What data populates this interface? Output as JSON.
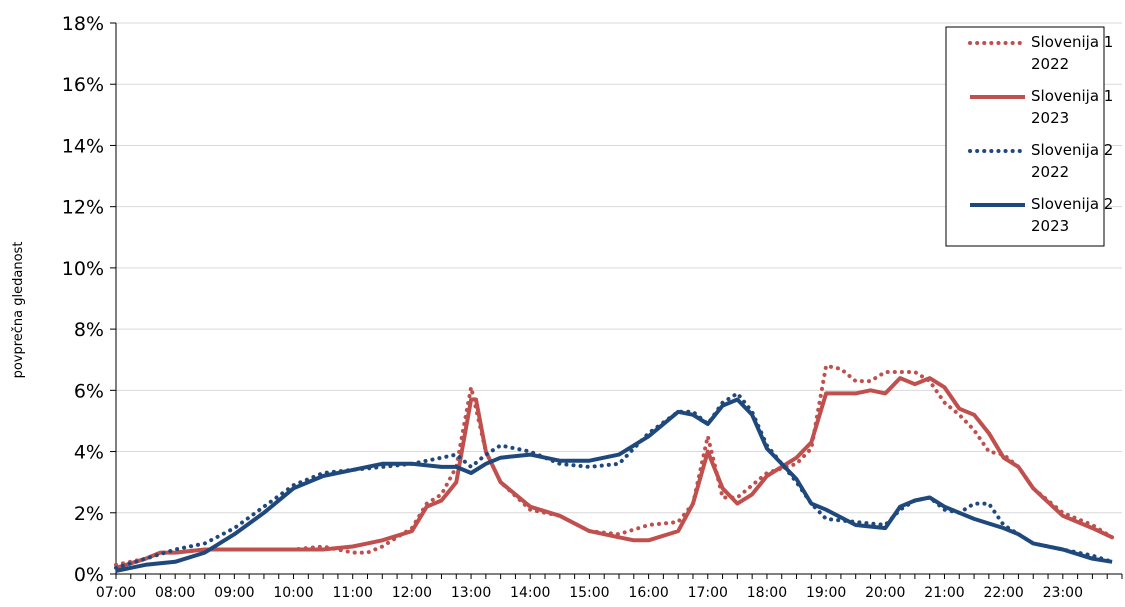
{
  "chart_data": {
    "type": "line",
    "title": "",
    "xlabel": "",
    "ylabel": "povprečna gledanost",
    "x_ticks": [
      "07:00",
      "08:00",
      "09:00",
      "10:00",
      "11:00",
      "12:00",
      "13:00",
      "14:00",
      "15:00",
      "16:00",
      "17:00",
      "18:00",
      "19:00",
      "20:00",
      "21:00",
      "22:00",
      "23:00"
    ],
    "y_ticks": [
      "0%",
      "2%",
      "4%",
      "6%",
      "8%",
      "10%",
      "12%",
      "14%",
      "16%",
      "18%"
    ],
    "ylim": [
      0,
      18
    ],
    "xlim_hours": [
      7,
      24
    ],
    "grid": "horizontal",
    "legend_position": "top-right",
    "colors": {
      "red": "#c0504d",
      "blue": "#1f497d"
    },
    "series": [
      {
        "name": "Slovenija 1 2022",
        "legend_lines": [
          "Slovenija 1",
          "2022"
        ],
        "color": "#c0504d",
        "style": "dotted",
        "points": [
          [
            "07:00",
            0.3
          ],
          [
            "07:30",
            0.5
          ],
          [
            "07:45",
            0.7
          ],
          [
            "08:00",
            0.7
          ],
          [
            "08:30",
            0.8
          ],
          [
            "09:00",
            0.8
          ],
          [
            "09:30",
            0.8
          ],
          [
            "10:00",
            0.8
          ],
          [
            "10:30",
            0.9
          ],
          [
            "11:00",
            0.7
          ],
          [
            "11:15",
            0.7
          ],
          [
            "11:30",
            0.9
          ],
          [
            "12:00",
            1.5
          ],
          [
            "12:15",
            2.3
          ],
          [
            "12:30",
            2.6
          ],
          [
            "12:45",
            3.5
          ],
          [
            "13:00",
            6.1
          ],
          [
            "13:15",
            4.0
          ],
          [
            "13:30",
            3.0
          ],
          [
            "14:00",
            2.1
          ],
          [
            "14:30",
            1.9
          ],
          [
            "15:00",
            1.4
          ],
          [
            "15:30",
            1.3
          ],
          [
            "16:00",
            1.6
          ],
          [
            "16:30",
            1.7
          ],
          [
            "16:45",
            2.3
          ],
          [
            "17:00",
            4.5
          ],
          [
            "17:15",
            2.5
          ],
          [
            "17:30",
            2.5
          ],
          [
            "18:00",
            3.3
          ],
          [
            "18:30",
            3.6
          ],
          [
            "18:45",
            4.1
          ],
          [
            "19:00",
            6.8
          ],
          [
            "19:15",
            6.7
          ],
          [
            "19:30",
            6.3
          ],
          [
            "19:45",
            6.3
          ],
          [
            "20:00",
            6.6
          ],
          [
            "20:30",
            6.6
          ],
          [
            "20:45",
            6.3
          ],
          [
            "21:00",
            5.6
          ],
          [
            "21:15",
            5.2
          ],
          [
            "21:30",
            4.7
          ],
          [
            "21:45",
            4.0
          ],
          [
            "22:00",
            3.9
          ],
          [
            "22:15",
            3.5
          ],
          [
            "22:30",
            2.8
          ],
          [
            "23:00",
            2.0
          ],
          [
            "23:30",
            1.6
          ],
          [
            "23:50",
            1.2
          ]
        ]
      },
      {
        "name": "Slovenija 1 2023",
        "legend_lines": [
          "Slovenija 1",
          "2023"
        ],
        "color": "#c0504d",
        "style": "solid",
        "points": [
          [
            "07:00",
            0.2
          ],
          [
            "07:30",
            0.5
          ],
          [
            "07:45",
            0.7
          ],
          [
            "08:00",
            0.7
          ],
          [
            "08:30",
            0.8
          ],
          [
            "09:00",
            0.8
          ],
          [
            "09:30",
            0.8
          ],
          [
            "10:00",
            0.8
          ],
          [
            "10:30",
            0.8
          ],
          [
            "11:00",
            0.9
          ],
          [
            "11:15",
            1.0
          ],
          [
            "11:30",
            1.1
          ],
          [
            "12:00",
            1.4
          ],
          [
            "12:15",
            2.2
          ],
          [
            "12:30",
            2.4
          ],
          [
            "12:45",
            3.0
          ],
          [
            "13:00",
            5.7
          ],
          [
            "13:05",
            5.7
          ],
          [
            "13:15",
            4.0
          ],
          [
            "13:30",
            3.0
          ],
          [
            "14:00",
            2.2
          ],
          [
            "14:30",
            1.9
          ],
          [
            "15:00",
            1.4
          ],
          [
            "15:30",
            1.2
          ],
          [
            "15:45",
            1.1
          ],
          [
            "16:00",
            1.1
          ],
          [
            "16:30",
            1.4
          ],
          [
            "16:45",
            2.3
          ],
          [
            "17:00",
            4.0
          ],
          [
            "17:15",
            2.8
          ],
          [
            "17:30",
            2.3
          ],
          [
            "17:45",
            2.6
          ],
          [
            "18:00",
            3.2
          ],
          [
            "18:30",
            3.8
          ],
          [
            "18:45",
            4.3
          ],
          [
            "19:00",
            5.9
          ],
          [
            "19:30",
            5.9
          ],
          [
            "19:45",
            6.0
          ],
          [
            "20:00",
            5.9
          ],
          [
            "20:15",
            6.4
          ],
          [
            "20:30",
            6.2
          ],
          [
            "20:45",
            6.4
          ],
          [
            "21:00",
            6.1
          ],
          [
            "21:15",
            5.4
          ],
          [
            "21:30",
            5.2
          ],
          [
            "21:45",
            4.6
          ],
          [
            "22:00",
            3.8
          ],
          [
            "22:15",
            3.5
          ],
          [
            "22:30",
            2.8
          ],
          [
            "23:00",
            1.9
          ],
          [
            "23:30",
            1.5
          ],
          [
            "23:50",
            1.2
          ]
        ]
      },
      {
        "name": "Slovenija 2 2022",
        "legend_lines": [
          "Slovenija 2",
          "2022"
        ],
        "color": "#1f497d",
        "style": "dotted",
        "points": [
          [
            "07:00",
            0.2
          ],
          [
            "07:30",
            0.5
          ],
          [
            "08:00",
            0.8
          ],
          [
            "08:30",
            1.0
          ],
          [
            "09:00",
            1.5
          ],
          [
            "09:30",
            2.2
          ],
          [
            "10:00",
            2.9
          ],
          [
            "10:30",
            3.3
          ],
          [
            "11:00",
            3.4
          ],
          [
            "11:30",
            3.5
          ],
          [
            "12:00",
            3.6
          ],
          [
            "12:30",
            3.8
          ],
          [
            "12:45",
            3.9
          ],
          [
            "13:00",
            3.5
          ],
          [
            "13:15",
            3.9
          ],
          [
            "13:30",
            4.2
          ],
          [
            "14:00",
            4.0
          ],
          [
            "14:30",
            3.6
          ],
          [
            "15:00",
            3.5
          ],
          [
            "15:30",
            3.6
          ],
          [
            "16:00",
            4.6
          ],
          [
            "16:30",
            5.3
          ],
          [
            "16:45",
            5.3
          ],
          [
            "17:00",
            4.9
          ],
          [
            "17:15",
            5.6
          ],
          [
            "17:30",
            5.9
          ],
          [
            "17:45",
            5.3
          ],
          [
            "18:00",
            4.2
          ],
          [
            "18:30",
            3.0
          ],
          [
            "18:45",
            2.3
          ],
          [
            "19:00",
            1.8
          ],
          [
            "19:30",
            1.7
          ],
          [
            "20:00",
            1.6
          ],
          [
            "20:15",
            2.1
          ],
          [
            "20:30",
            2.4
          ],
          [
            "20:45",
            2.5
          ],
          [
            "21:00",
            2.1
          ],
          [
            "21:15",
            2.0
          ],
          [
            "21:30",
            2.3
          ],
          [
            "21:45",
            2.3
          ],
          [
            "22:00",
            1.6
          ],
          [
            "22:15",
            1.3
          ],
          [
            "22:30",
            1.0
          ],
          [
            "23:00",
            0.8
          ],
          [
            "23:30",
            0.6
          ],
          [
            "23:50",
            0.4
          ]
        ]
      },
      {
        "name": "Slovenija 2 2023",
        "legend_lines": [
          "Slovenija 2",
          "2023"
        ],
        "color": "#1f497d",
        "style": "solid",
        "points": [
          [
            "07:00",
            0.1
          ],
          [
            "07:30",
            0.3
          ],
          [
            "08:00",
            0.4
          ],
          [
            "08:30",
            0.7
          ],
          [
            "09:00",
            1.3
          ],
          [
            "09:30",
            2.0
          ],
          [
            "10:00",
            2.8
          ],
          [
            "10:30",
            3.2
          ],
          [
            "11:00",
            3.4
          ],
          [
            "11:30",
            3.6
          ],
          [
            "12:00",
            3.6
          ],
          [
            "12:30",
            3.5
          ],
          [
            "12:45",
            3.5
          ],
          [
            "13:00",
            3.3
          ],
          [
            "13:15",
            3.6
          ],
          [
            "13:30",
            3.8
          ],
          [
            "14:00",
            3.9
          ],
          [
            "14:30",
            3.7
          ],
          [
            "15:00",
            3.7
          ],
          [
            "15:30",
            3.9
          ],
          [
            "16:00",
            4.5
          ],
          [
            "16:30",
            5.3
          ],
          [
            "16:45",
            5.2
          ],
          [
            "17:00",
            4.9
          ],
          [
            "17:15",
            5.5
          ],
          [
            "17:30",
            5.7
          ],
          [
            "17:45",
            5.2
          ],
          [
            "18:00",
            4.1
          ],
          [
            "18:30",
            3.1
          ],
          [
            "18:45",
            2.3
          ],
          [
            "19:00",
            2.1
          ],
          [
            "19:30",
            1.6
          ],
          [
            "20:00",
            1.5
          ],
          [
            "20:15",
            2.2
          ],
          [
            "20:30",
            2.4
          ],
          [
            "20:45",
            2.5
          ],
          [
            "21:00",
            2.2
          ],
          [
            "21:15",
            2.0
          ],
          [
            "21:30",
            1.8
          ],
          [
            "22:00",
            1.5
          ],
          [
            "22:15",
            1.3
          ],
          [
            "22:30",
            1.0
          ],
          [
            "23:00",
            0.8
          ],
          [
            "23:30",
            0.5
          ],
          [
            "23:50",
            0.4
          ]
        ]
      }
    ]
  }
}
